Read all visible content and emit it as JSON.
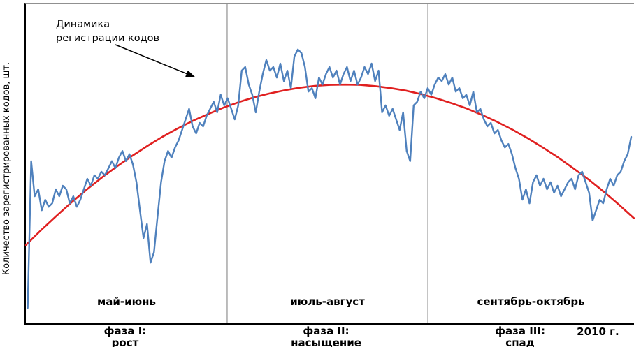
{
  "y_axis_label": "Количество зарегистрированных кодов, шт.",
  "annotation": {
    "line1": "Динамика",
    "line2": "регистрации кодов"
  },
  "phases": [
    {
      "month_label": "май-июнь",
      "phase_line1": "фаза I:",
      "phase_line2": "рост"
    },
    {
      "month_label": "июль-август",
      "phase_line1": "фаза II:",
      "phase_line2": "насыщение"
    },
    {
      "month_label": "сентябрь-октябрь",
      "phase_line1": "фаза III:",
      "phase_line2": "спад"
    }
  ],
  "year_label": "2010 г.",
  "colors": {
    "series_line": "#4f81bd",
    "trend_line": "#e02020",
    "divider": "#909090",
    "axis": "#000000",
    "arrow": "#000000"
  },
  "chart_data": {
    "type": "line",
    "title": "Динамика регистрации кодов",
    "xlabel": "",
    "ylabel": "Количество зарегистрированных кодов, шт.",
    "x_range": [
      0,
      100
    ],
    "y_range": [
      0,
      100
    ],
    "grid": false,
    "legend": "none",
    "phase_boundaries_x": [
      33.1,
      66.1
    ],
    "x_axis_periods": [
      "май-июнь",
      "июль-август",
      "сентябрь-октябрь"
    ],
    "year": "2010",
    "series": [
      {
        "name": "динамика регистрации кодов",
        "color": "#4f81bd",
        "width": 2.4,
        "x_start": 0.3,
        "x_step": 0.577,
        "values": [
          4.8,
          50.8,
          39.8,
          42.0,
          35.4,
          38.7,
          36.5,
          37.6,
          42.0,
          39.8,
          43.1,
          42.0,
          37.6,
          39.8,
          36.5,
          38.7,
          42.0,
          45.3,
          43.1,
          46.4,
          45.3,
          47.5,
          46.4,
          48.6,
          50.8,
          48.6,
          51.9,
          54.0,
          50.8,
          53.0,
          49.7,
          44.2,
          35.4,
          26.7,
          31.1,
          19.0,
          22.3,
          33.3,
          44.2,
          50.8,
          54.0,
          51.9,
          55.1,
          57.3,
          60.6,
          63.9,
          67.2,
          61.7,
          59.5,
          62.8,
          61.7,
          65.0,
          67.2,
          69.4,
          66.1,
          71.6,
          68.3,
          70.5,
          67.2,
          63.9,
          68.3,
          79.2,
          80.3,
          74.8,
          71.6,
          66.1,
          72.6,
          78.1,
          82.5,
          79.2,
          80.3,
          77.0,
          81.4,
          75.9,
          79.2,
          73.7,
          83.6,
          85.8,
          84.7,
          80.3,
          72.6,
          73.7,
          70.5,
          77.0,
          74.8,
          78.1,
          80.3,
          77.0,
          79.2,
          74.8,
          78.1,
          80.3,
          75.9,
          79.2,
          74.8,
          77.0,
          80.3,
          78.1,
          81.4,
          75.9,
          79.2,
          66.1,
          68.3,
          65.0,
          67.2,
          63.9,
          60.6,
          66.1,
          54.0,
          50.8,
          68.3,
          69.4,
          72.6,
          70.5,
          73.7,
          71.6,
          74.8,
          77.0,
          75.9,
          78.1,
          74.8,
          77.0,
          72.6,
          73.7,
          70.5,
          71.6,
          68.3,
          72.6,
          66.1,
          67.2,
          63.9,
          61.7,
          62.8,
          59.5,
          60.6,
          57.3,
          55.1,
          56.2,
          53.0,
          48.6,
          45.3,
          38.7,
          42.0,
          37.6,
          44.2,
          46.4,
          43.1,
          45.3,
          42.0,
          44.2,
          40.9,
          43.1,
          39.8,
          42.0,
          44.2,
          45.3,
          42.0,
          46.4,
          47.5,
          44.2,
          40.9,
          32.2,
          35.4,
          38.7,
          37.6,
          42.0,
          45.3,
          43.1,
          46.4,
          47.5,
          50.8,
          53.0,
          58.4
        ]
      },
      {
        "name": "тренд",
        "color": "#e02020",
        "width": 2.6,
        "x_start": 0,
        "x_step": 2.5,
        "values": [
          24.5,
          29.2,
          33.6,
          37.9,
          41.9,
          45.7,
          49.2,
          52.5,
          55.6,
          58.5,
          61.1,
          63.5,
          65.6,
          67.6,
          69.3,
          70.8,
          72.0,
          73.0,
          73.8,
          74.4,
          74.7,
          74.8,
          74.7,
          74.3,
          73.7,
          72.9,
          71.8,
          70.5,
          69.0,
          67.3,
          65.3,
          63.1,
          60.7,
          58.0,
          55.1,
          52.0,
          48.6,
          45.1,
          41.3,
          37.2,
          32.9
        ]
      }
    ]
  }
}
